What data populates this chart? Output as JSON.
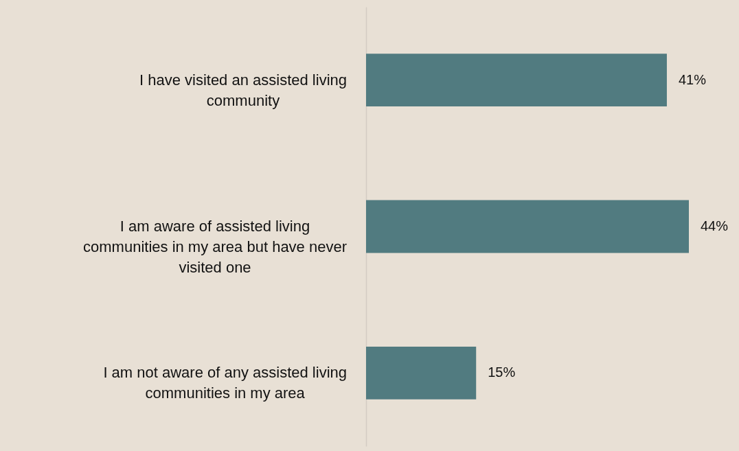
{
  "chart_data": {
    "type": "bar",
    "orientation": "horizontal",
    "categories": [
      "I have visited an assisted living community",
      "I am aware of assisted living communities in my area but have never visited one",
      "I am not aware of any assisted living communities in my area"
    ],
    "values": [
      41,
      44,
      15
    ],
    "value_labels": [
      "41%",
      "44%",
      "15%"
    ],
    "color": "#517b80"
  }
}
